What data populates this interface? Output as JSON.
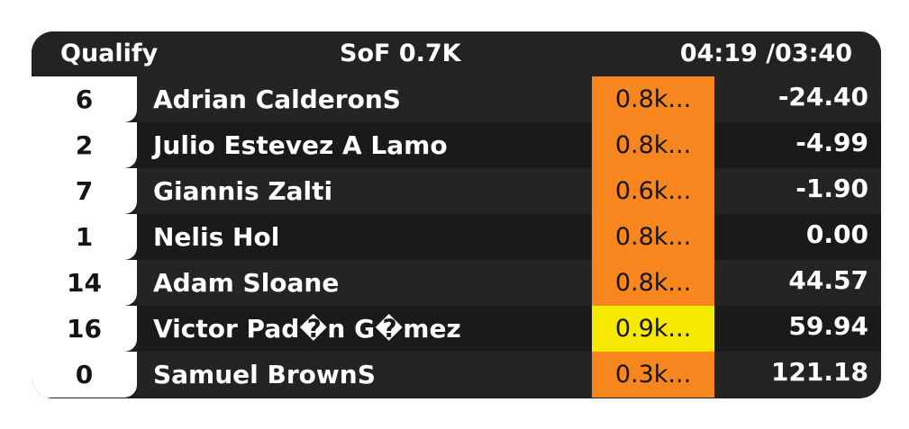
{
  "header": {
    "session": "Qualify",
    "sof": "SoF 0.7K",
    "time": "04:19 /03:40"
  },
  "colors": {
    "rating_normal": "#f7861f",
    "rating_highlight": "#f5e900",
    "background": "#1e1e1e"
  },
  "rows": [
    {
      "pos": "6",
      "name": "Adrian CalderonS",
      "rating": "0.8k...",
      "gap": "-24.40"
    },
    {
      "pos": "2",
      "name": "Julio Estevez A Lamo",
      "rating": "0.8k...",
      "gap": "-4.99"
    },
    {
      "pos": "7",
      "name": "Giannis Zalti",
      "rating": "0.6k...",
      "gap": "-1.90"
    },
    {
      "pos": "1",
      "name": "Nelis Hol",
      "rating": "0.8k...",
      "gap": "0.00"
    },
    {
      "pos": "14",
      "name": "Adam Sloane",
      "rating": "0.8k...",
      "gap": "44.57"
    },
    {
      "pos": "16",
      "name": "Victor Pad�n G�mez",
      "rating": "0.9k...",
      "gap": "59.94"
    },
    {
      "pos": "0",
      "name": "Samuel BrownS",
      "rating": "0.3k...",
      "gap": "121.18"
    }
  ]
}
